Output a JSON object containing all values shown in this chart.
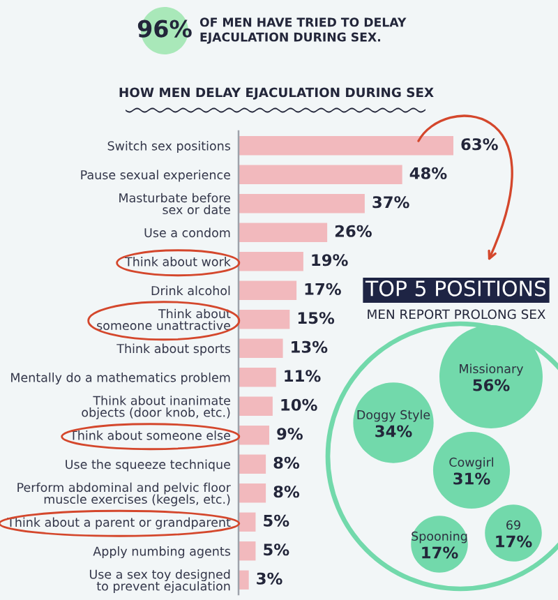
{
  "chart_data": [
    {
      "type": "bar",
      "orientation": "horizontal",
      "title": "HOW MEN DELAY EJACULATION DURING SEX",
      "annotations": [
        "96%",
        "OF MEN HAVE TRIED TO DELAY\nEJACULATION DURING SEX."
      ],
      "categories": [
        "Switch sex positions",
        "Pause sexual experience",
        "Masturbate before\nsex or date",
        "Use a condom",
        "Think about work",
        "Drink alcohol",
        "Think about\nsomeone unattractive",
        "Think about sports",
        "Mentally do a mathematics problem",
        "Think about inanimate\nobjects (door knob, etc.)",
        "Think about someone else",
        "Use the squeeze technique",
        "Perform abdominal and pelvic floor\nmuscle exercises (kegels, etc.)",
        "Think about a parent or grandparent",
        "Apply numbing agents",
        "Use a sex toy designed\nto prevent ejaculation"
      ],
      "values": [
        63,
        48,
        37,
        26,
        19,
        17,
        15,
        13,
        11,
        10,
        9,
        8,
        8,
        5,
        5,
        3
      ],
      "value_labels": [
        "63%",
        "48%",
        "37%",
        "26%",
        "19%",
        "17%",
        "15%",
        "13%",
        "11%",
        "10%",
        "9%",
        "8%",
        "8%",
        "5%",
        "5%",
        "3%"
      ],
      "color": "#f2b9bd",
      "tick_labels": "y"
    },
    {
      "type": "other",
      "title": "TOP 5 POSITIONS",
      "subtitle": "MEN REPORT PROLONG SEX",
      "categories": [
        "Missionary",
        "Doggy Style",
        "Cowgirl",
        "Spooning",
        "69"
      ],
      "values": [
        56,
        34,
        31,
        17,
        17
      ],
      "value_labels": [
        "56%",
        "34%",
        "31%",
        "17%",
        "17%"
      ],
      "color": "#72d9ab"
    }
  ]
}
